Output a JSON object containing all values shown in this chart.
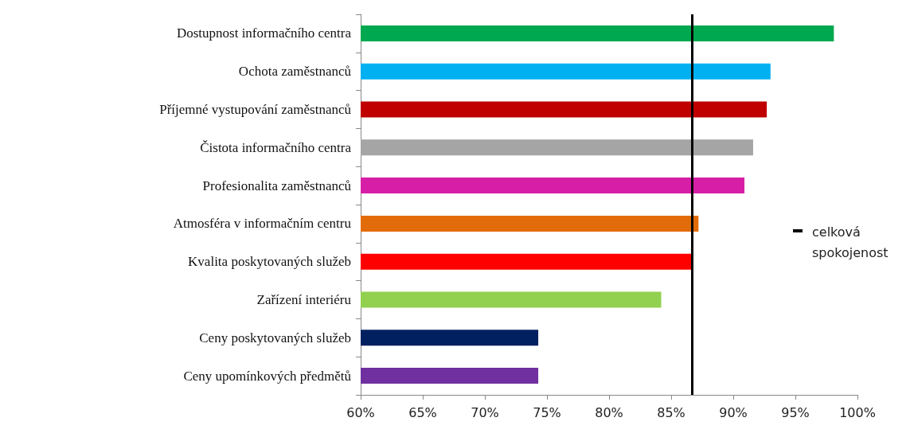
{
  "chart_data": {
    "type": "bar",
    "orientation": "horizontal",
    "categories": [
      "Dostupnost informačního centra",
      "Ochota zaměstnanců",
      "Příjemné vystupování zaměstnanců",
      "Čistota informačního centra",
      "Profesionalita zaměstnanců",
      "Atmosféra v informačním centru",
      "Kvalita poskytovaných služeb",
      "Zařízení interiéru",
      "Ceny poskytovaných služeb",
      "Ceny upomínkových předmětů"
    ],
    "values": [
      0.981,
      0.93,
      0.927,
      0.916,
      0.909,
      0.872,
      0.867,
      0.842,
      0.743,
      0.743
    ],
    "colors": [
      "#00a84f",
      "#00b0f0",
      "#c00000",
      "#a5a5a5",
      "#d61fa6",
      "#e36c0a",
      "#ff0000",
      "#92d050",
      "#002060",
      "#7030a0"
    ],
    "xlim": [
      0.6,
      1
    ],
    "xticks": [
      {
        "value": 0.6,
        "label": "60%"
      },
      {
        "value": 0.65,
        "label": "65%"
      },
      {
        "value": 0.7,
        "label": "70%"
      },
      {
        "value": 0.75,
        "label": "75%"
      },
      {
        "value": 0.8,
        "label": "80%"
      },
      {
        "value": 0.85,
        "label": "85%"
      },
      {
        "value": 0.9,
        "label": "90%"
      },
      {
        "value": 0.95,
        "label": "95%"
      },
      {
        "value": 1,
        "label": "100%"
      }
    ],
    "ref_lines": [
      {
        "axis": "x",
        "value": 0.867,
        "label": "celková spokojenost",
        "color": "#000000"
      }
    ],
    "grid": false
  }
}
